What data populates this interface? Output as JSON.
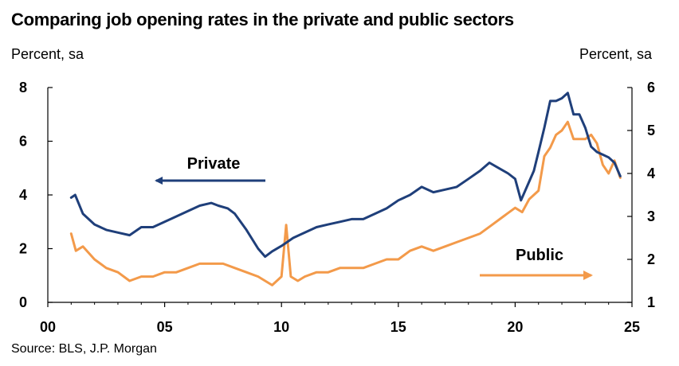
{
  "title": "Comparing job opening rates in the private and public sectors",
  "left_unit": "Percent, sa",
  "right_unit": "Percent, sa",
  "source": "Source: BLS, J.P. Morgan",
  "colors": {
    "private": "#1f3f7a",
    "public": "#f39a4a",
    "axis": "#000000"
  },
  "chart_data": {
    "type": "line",
    "x_ticks": [
      {
        "value": 2000,
        "label": "00"
      },
      {
        "value": 2005,
        "label": "05"
      },
      {
        "value": 2010,
        "label": "10"
      },
      {
        "value": 2015,
        "label": "15"
      },
      {
        "value": 2020,
        "label": "20"
      },
      {
        "value": 2025,
        "label": "25"
      }
    ],
    "xlim": [
      2000,
      2025
    ],
    "y_left": {
      "ylim": [
        0,
        8
      ],
      "ticks": [
        0,
        2,
        4,
        6,
        8
      ]
    },
    "y_right": {
      "ylim": [
        1,
        6
      ],
      "ticks": [
        1,
        2,
        3,
        4,
        5,
        6
      ]
    },
    "annotations": [
      {
        "text": "Private",
        "series": "Private",
        "arrow": "left"
      },
      {
        "text": "Public",
        "series": "Public",
        "arrow": "right"
      }
    ],
    "series": [
      {
        "name": "Private",
        "axis": "left",
        "x": [
          2001.0,
          2001.17,
          2001.5,
          2002.0,
          2002.5,
          2003.0,
          2003.5,
          2004.0,
          2004.5,
          2005.0,
          2005.5,
          2006.0,
          2006.5,
          2007.0,
          2007.3,
          2007.7,
          2008.0,
          2008.5,
          2009.0,
          2009.3,
          2009.6,
          2010.0,
          2010.5,
          2011.0,
          2011.5,
          2012.0,
          2012.5,
          2013.0,
          2013.5,
          2014.0,
          2014.5,
          2015.0,
          2015.5,
          2016.0,
          2016.5,
          2017.0,
          2017.5,
          2018.0,
          2018.5,
          2018.9,
          2019.3,
          2019.7,
          2020.0,
          2020.25,
          2020.5,
          2020.8,
          2021.0,
          2021.25,
          2021.5,
          2021.75,
          2022.0,
          2022.25,
          2022.5,
          2022.75,
          2023.0,
          2023.25,
          2023.5,
          2023.75,
          2024.0,
          2024.25,
          2024.5
        ],
        "y": [
          3.9,
          4.0,
          3.3,
          2.9,
          2.7,
          2.6,
          2.5,
          2.8,
          2.8,
          3.0,
          3.2,
          3.4,
          3.6,
          3.7,
          3.6,
          3.5,
          3.3,
          2.7,
          2.0,
          1.7,
          1.9,
          2.1,
          2.4,
          2.6,
          2.8,
          2.9,
          3.0,
          3.1,
          3.1,
          3.3,
          3.5,
          3.8,
          4.0,
          4.3,
          4.1,
          4.2,
          4.3,
          4.6,
          4.9,
          5.2,
          5.0,
          4.8,
          4.6,
          3.8,
          4.3,
          4.9,
          5.6,
          6.5,
          7.5,
          7.5,
          7.6,
          7.8,
          7.0,
          7.0,
          6.5,
          5.8,
          5.6,
          5.5,
          5.4,
          5.2,
          4.7
        ]
      },
      {
        "name": "Public",
        "axis": "right",
        "x": [
          2001.0,
          2001.2,
          2001.5,
          2002.0,
          2002.5,
          2003.0,
          2003.5,
          2004.0,
          2004.5,
          2005.0,
          2005.5,
          2006.0,
          2006.5,
          2007.0,
          2007.5,
          2008.0,
          2008.5,
          2009.0,
          2009.3,
          2009.6,
          2010.0,
          2010.2,
          2010.4,
          2010.7,
          2011.0,
          2011.5,
          2012.0,
          2012.5,
          2013.0,
          2013.5,
          2014.0,
          2014.5,
          2015.0,
          2015.5,
          2016.0,
          2016.5,
          2017.0,
          2017.5,
          2018.0,
          2018.5,
          2019.0,
          2019.5,
          2020.0,
          2020.3,
          2020.6,
          2021.0,
          2021.25,
          2021.5,
          2021.75,
          2022.0,
          2022.25,
          2022.5,
          2022.75,
          2023.0,
          2023.25,
          2023.5,
          2023.75,
          2024.0,
          2024.25,
          2024.5
        ],
        "y": [
          2.6,
          2.2,
          2.3,
          2.0,
          1.8,
          1.7,
          1.5,
          1.6,
          1.6,
          1.7,
          1.7,
          1.8,
          1.9,
          1.9,
          1.9,
          1.8,
          1.7,
          1.6,
          1.5,
          1.4,
          1.6,
          2.8,
          1.6,
          1.5,
          1.6,
          1.7,
          1.7,
          1.8,
          1.8,
          1.8,
          1.9,
          2.0,
          2.0,
          2.2,
          2.3,
          2.2,
          2.3,
          2.4,
          2.5,
          2.6,
          2.8,
          3.0,
          3.2,
          3.1,
          3.4,
          3.6,
          4.4,
          4.6,
          4.9,
          5.0,
          5.2,
          4.8,
          4.8,
          4.8,
          4.9,
          4.7,
          4.2,
          4.0,
          4.3,
          3.9
        ]
      }
    ]
  }
}
